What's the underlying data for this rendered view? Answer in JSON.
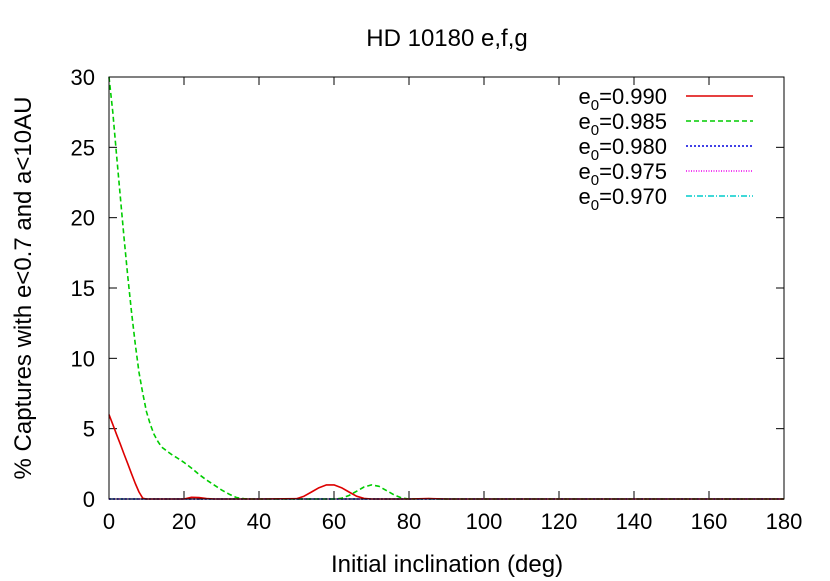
{
  "chart_data": {
    "type": "line",
    "title": "HD 10180 e,f,g",
    "xlabel": "Initial inclination (deg)",
    "ylabel": "% Captures with e<0.7 and a<10AU",
    "xlim": [
      0,
      180
    ],
    "ylim": [
      0,
      30
    ],
    "xticks": [
      0,
      20,
      40,
      60,
      80,
      100,
      120,
      140,
      160,
      180
    ],
    "yticks": [
      0,
      5,
      10,
      15,
      20,
      25,
      30
    ],
    "grid": false,
    "legend_position": "top-right",
    "legend_prefix": "e",
    "legend_subscript": "0",
    "series": [
      {
        "name": "=0.990",
        "color": "#dd0000",
        "dash": "",
        "x": [
          0,
          1,
          2,
          3,
          4,
          5,
          6,
          7,
          8,
          9,
          10,
          15,
          20,
          22,
          24,
          26,
          28,
          30,
          40,
          50,
          52,
          54,
          56,
          58,
          60,
          62,
          64,
          66,
          68,
          70,
          75,
          80,
          85,
          90,
          180
        ],
        "y": [
          6.0,
          5.3,
          4.6,
          3.9,
          3.2,
          2.5,
          1.8,
          1.1,
          0.5,
          0.05,
          0,
          0,
          0,
          0.12,
          0.1,
          0.03,
          0,
          0,
          0,
          0.02,
          0.2,
          0.5,
          0.8,
          1.0,
          1.0,
          0.8,
          0.5,
          0.2,
          0.04,
          0,
          0,
          0,
          0.03,
          0,
          0
        ]
      },
      {
        "name": "=0.985",
        "color": "#00cc00",
        "dash": "5,3",
        "x": [
          0,
          1,
          2,
          3,
          4,
          5,
          6,
          7,
          8,
          9,
          10,
          11,
          12,
          13,
          14,
          15,
          16,
          17,
          18,
          20,
          22,
          24,
          26,
          28,
          30,
          32,
          34,
          36,
          38,
          40,
          50,
          60,
          62,
          64,
          66,
          68,
          70,
          72,
          74,
          76,
          78,
          80,
          85,
          90,
          180
        ],
        "y": [
          30,
          27.5,
          24.5,
          21.5,
          18.6,
          15.8,
          13.3,
          11.0,
          9.0,
          7.5,
          6.2,
          5.3,
          4.6,
          4.1,
          3.7,
          3.5,
          3.3,
          3.1,
          2.95,
          2.6,
          2.2,
          1.75,
          1.35,
          1.0,
          0.65,
          0.35,
          0.1,
          0.02,
          0,
          0,
          0,
          0,
          0.05,
          0.25,
          0.55,
          0.85,
          1.0,
          0.9,
          0.6,
          0.3,
          0.08,
          0,
          0.02,
          0,
          0
        ]
      },
      {
        "name": "=0.980",
        "color": "#0000dd",
        "dash": "2,2",
        "x": [
          0,
          180
        ],
        "y": [
          0,
          0
        ]
      },
      {
        "name": "=0.975",
        "color": "#ee00ee",
        "dash": "1,1.5",
        "x": [
          0,
          180
        ],
        "y": [
          0,
          0
        ]
      },
      {
        "name": "=0.970",
        "color": "#00cccc",
        "dash": "6,2,1,2",
        "x": [
          0,
          180
        ],
        "y": [
          0,
          0
        ]
      }
    ]
  }
}
